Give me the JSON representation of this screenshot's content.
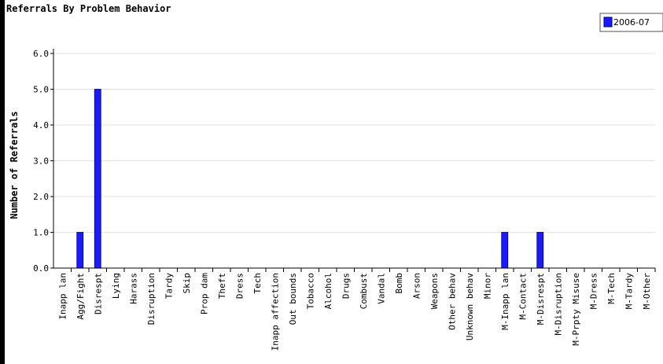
{
  "chart_data": {
    "type": "bar",
    "title": "Referrals By Problem Behavior",
    "ylabel": "Number of Referrals",
    "xlabel": "",
    "ylim": [
      0,
      6
    ],
    "yticks": [
      "0.0",
      "1.0",
      "2.0",
      "3.0",
      "4.0",
      "5.0",
      "6.0"
    ],
    "grid": true,
    "legend_position": "top-right",
    "categories": [
      "Inapp lan",
      "Agg/Fight",
      "Disrespt",
      "Lying",
      "Harass",
      "Disruption",
      "Tardy",
      "Skip",
      "Prop dam",
      "Theft",
      "Dress",
      "Tech",
      "Inapp affection",
      "Out bounds",
      "Tobacco",
      "Alcohol",
      "Drugs",
      "Combust",
      "Vandal",
      "Bomb",
      "Arson",
      "Weapons",
      "Other behav",
      "Unknown behav",
      "Minor",
      "M-Inapp lan",
      "M-Contact",
      "M-Disrespt",
      "M-Disruption",
      "M-Prpty Misuse",
      "M-Dress",
      "M-Tech",
      "M-Tardy",
      "M-Other"
    ],
    "series": [
      {
        "name": "2006-07",
        "color": "#1a1aff",
        "values": [
          0,
          1,
          5,
          0,
          0,
          0,
          0,
          0,
          0,
          0,
          0,
          0,
          0,
          0,
          0,
          0,
          0,
          0,
          0,
          0,
          0,
          0,
          0,
          0,
          0,
          1,
          0,
          1,
          0,
          0,
          0,
          0,
          0,
          0
        ]
      }
    ]
  }
}
